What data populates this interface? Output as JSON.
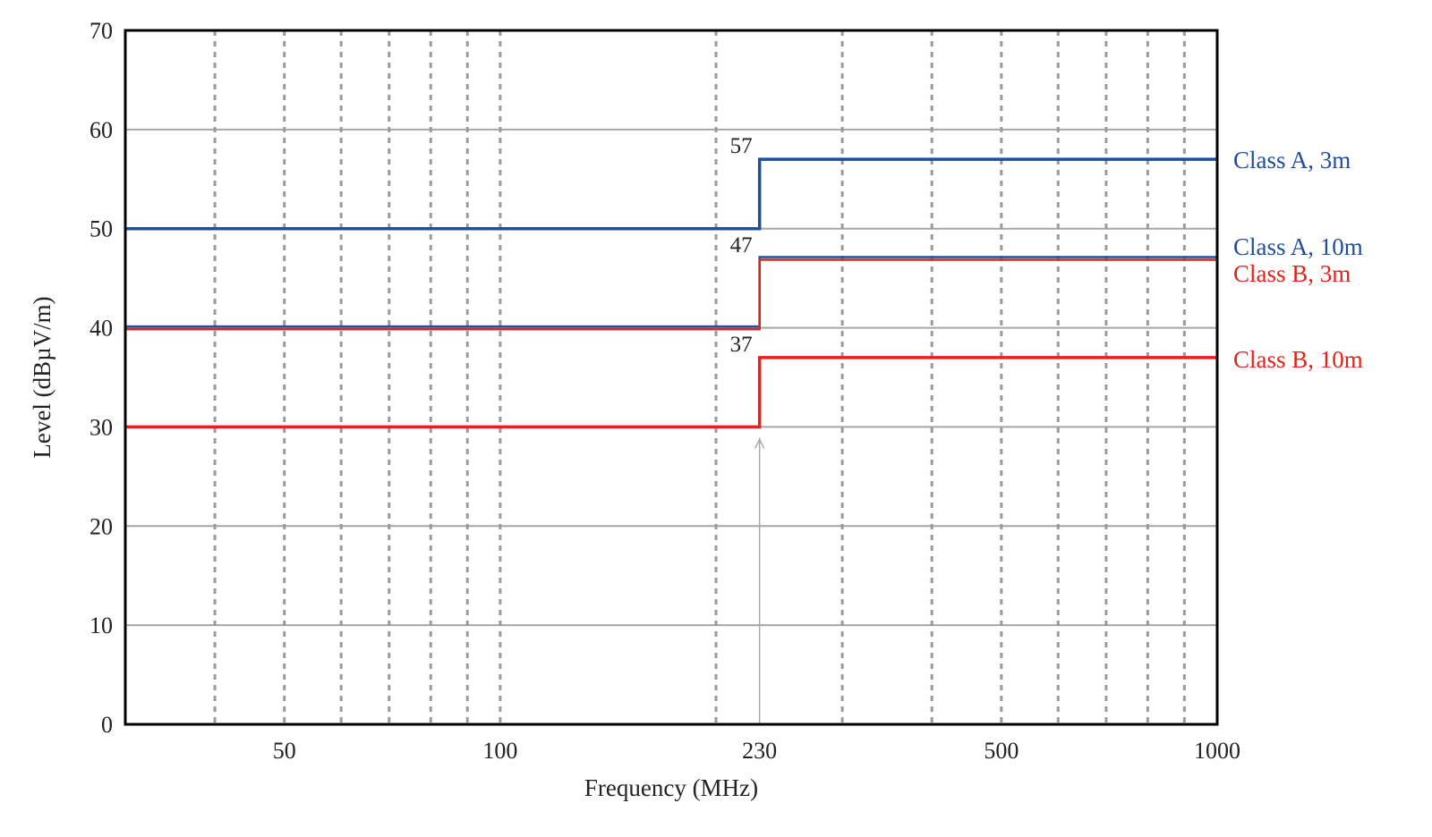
{
  "chart_data": {
    "type": "line",
    "title": "",
    "xlabel": "Frequency (MHz)",
    "ylabel": "Level (dBµV/m)",
    "x_scale": "log",
    "xlim": [
      30,
      1000
    ],
    "ylim": [
      0,
      70
    ],
    "x_ticks": [
      50,
      100,
      230,
      500,
      1000
    ],
    "x_tick_labels": [
      "50",
      "100",
      "230",
      "500",
      "1000"
    ],
    "x_minor_gridlines": [
      40,
      50,
      60,
      70,
      80,
      90,
      100,
      200,
      230,
      300,
      400,
      500,
      600,
      700,
      800,
      900
    ],
    "y_ticks": [
      0,
      10,
      20,
      30,
      40,
      50,
      60,
      70
    ],
    "y_tick_labels": [
      "0",
      "10",
      "20",
      "30",
      "40",
      "50",
      "60",
      "70"
    ],
    "grid": true,
    "legend": "right-of-plot labels",
    "step_frequency": 230,
    "series": [
      {
        "name": "Class A, 3m",
        "color": "#1f4e9c",
        "points": [
          [
            30,
            50
          ],
          [
            230,
            50
          ],
          [
            230,
            57
          ],
          [
            1000,
            57
          ]
        ]
      },
      {
        "name": "Class A, 10m",
        "color": "#1f4e9c",
        "points": [
          [
            30,
            40
          ],
          [
            230,
            40
          ],
          [
            230,
            47
          ],
          [
            1000,
            47
          ]
        ]
      },
      {
        "name": "Class B, 3m",
        "color": "#e2231a",
        "points": [
          [
            30,
            40
          ],
          [
            230,
            40
          ],
          [
            230,
            47
          ],
          [
            1000,
            47
          ]
        ]
      },
      {
        "name": "Class B, 10m",
        "color": "#e2231a",
        "points": [
          [
            30,
            30
          ],
          [
            230,
            30
          ],
          [
            230,
            37
          ],
          [
            1000,
            37
          ]
        ]
      }
    ],
    "annotations": [
      {
        "text": "57",
        "x": 230,
        "y": 57
      },
      {
        "text": "47",
        "x": 230,
        "y": 47
      },
      {
        "text": "37",
        "x": 230,
        "y": 37
      }
    ],
    "arrow": {
      "x": 230,
      "from_y": 0,
      "to_y": 30,
      "color": "#aaaaaa"
    }
  }
}
